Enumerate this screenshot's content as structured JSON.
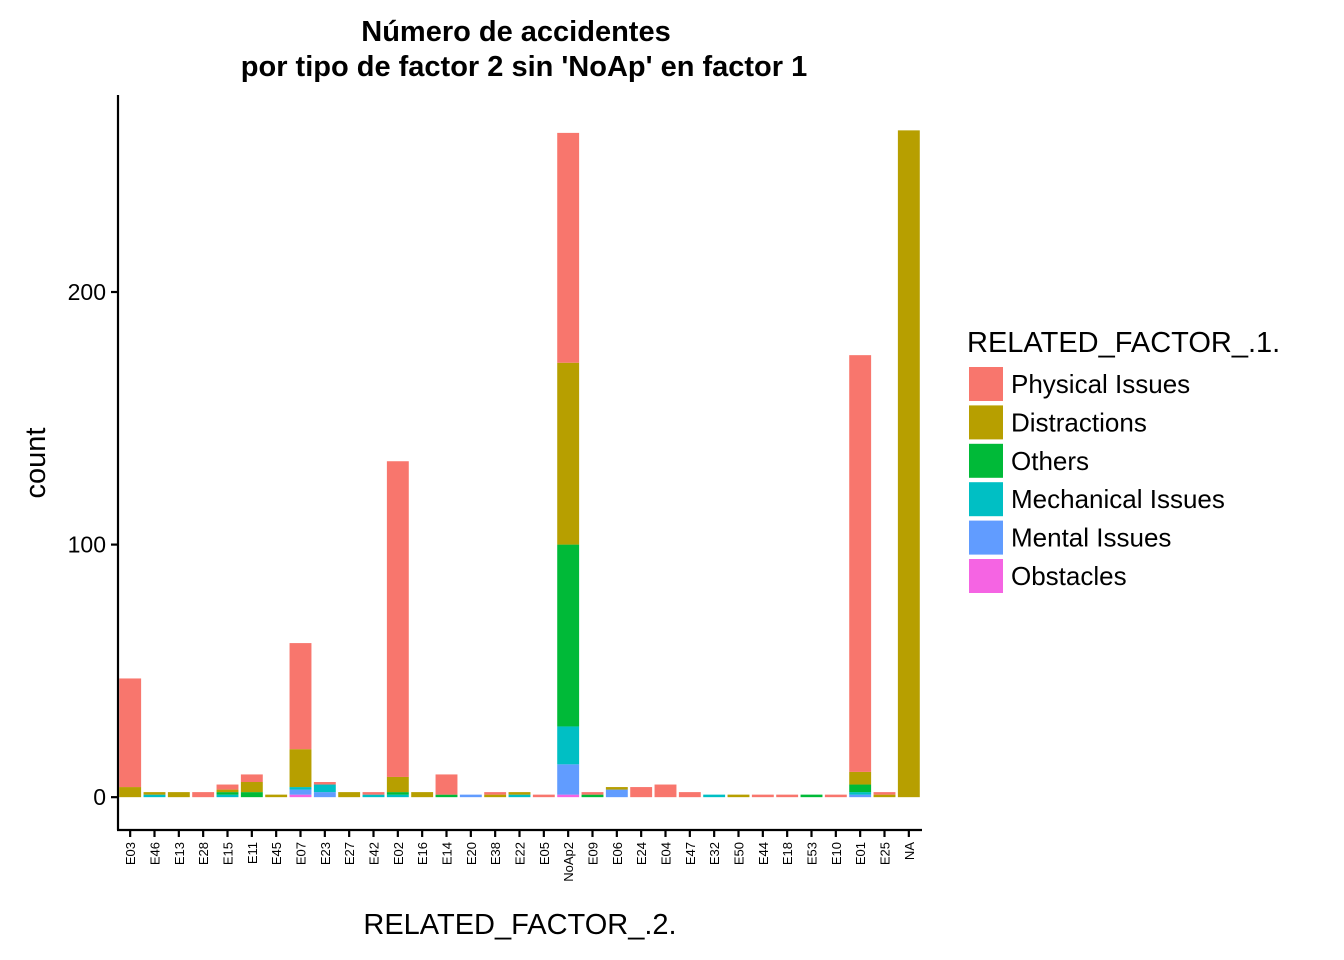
{
  "chart_data": {
    "type": "bar",
    "stacked": true,
    "title_line1": "Número de accidentes",
    "title_line2": "por tipo de factor 2 sin 'NoAp' en factor 1",
    "xlabel": "RELATED_FACTOR_.2.",
    "ylabel": "count",
    "ylim": [
      -13,
      278
    ],
    "yticks": [
      0,
      100,
      200
    ],
    "legend_title": "RELATED_FACTOR_.1.",
    "legend_position": "right",
    "grid": false,
    "categories": [
      "E03",
      "E46",
      "E13",
      "E28",
      "E15",
      "E11",
      "E45",
      "E07",
      "E23",
      "E27",
      "E42",
      "E02",
      "E16",
      "E14",
      "E20",
      "E38",
      "E22",
      "E05",
      "NoAp2",
      "E09",
      "E06",
      "E24",
      "E04",
      "E47",
      "E32",
      "E50",
      "E44",
      "E18",
      "E53",
      "E10",
      "E01",
      "E25",
      "NA"
    ],
    "series": [
      {
        "name": "Obstacles",
        "color": "#F564E3",
        "values": [
          0,
          0,
          0,
          0,
          0,
          0,
          0,
          1,
          0,
          0,
          0,
          0,
          0,
          0,
          0,
          0,
          0,
          0,
          1,
          0,
          0,
          0,
          0,
          0,
          0,
          0,
          0,
          0,
          0,
          0,
          0,
          0,
          0
        ]
      },
      {
        "name": "Mental Issues",
        "color": "#619CFF",
        "values": [
          0,
          0,
          0,
          0,
          0,
          0,
          0,
          2,
          2,
          0,
          0,
          0,
          0,
          0,
          1,
          0,
          0,
          0,
          12,
          0,
          3,
          0,
          0,
          0,
          0,
          0,
          0,
          0,
          0,
          0,
          1,
          0,
          0
        ]
      },
      {
        "name": "Mechanical Issues",
        "color": "#00BFC4",
        "values": [
          0,
          1,
          0,
          0,
          1,
          0,
          0,
          1,
          3,
          0,
          1,
          1,
          0,
          0,
          0,
          0,
          1,
          0,
          15,
          0,
          0,
          0,
          0,
          0,
          1,
          0,
          0,
          0,
          0,
          0,
          1,
          0,
          0
        ]
      },
      {
        "name": "Others",
        "color": "#00BA38",
        "values": [
          0,
          0,
          0,
          0,
          1,
          2,
          0,
          0,
          0,
          0,
          0,
          1,
          0,
          1,
          0,
          0,
          0,
          0,
          72,
          1,
          0,
          0,
          0,
          0,
          0,
          0,
          0,
          0,
          1,
          0,
          3,
          0,
          0
        ]
      },
      {
        "name": "Distractions",
        "color": "#B79F00",
        "values": [
          4,
          1,
          2,
          0,
          1,
          4,
          1,
          15,
          0,
          2,
          0,
          6,
          2,
          0,
          0,
          1,
          1,
          0,
          72,
          0,
          1,
          0,
          0,
          0,
          0,
          1,
          0,
          0,
          0,
          0,
          5,
          1,
          264
        ]
      },
      {
        "name": "Physical Issues",
        "color": "#F8766D",
        "values": [
          43,
          0,
          0,
          2,
          2,
          3,
          0,
          42,
          1,
          0,
          1,
          125,
          0,
          8,
          0,
          1,
          0,
          1,
          91,
          1,
          0,
          4,
          5,
          2,
          0,
          0,
          1,
          1,
          0,
          1,
          165,
          1,
          0
        ]
      }
    ],
    "legend_order": [
      "Physical Issues",
      "Distractions",
      "Others",
      "Mechanical Issues",
      "Mental Issues",
      "Obstacles"
    ]
  }
}
